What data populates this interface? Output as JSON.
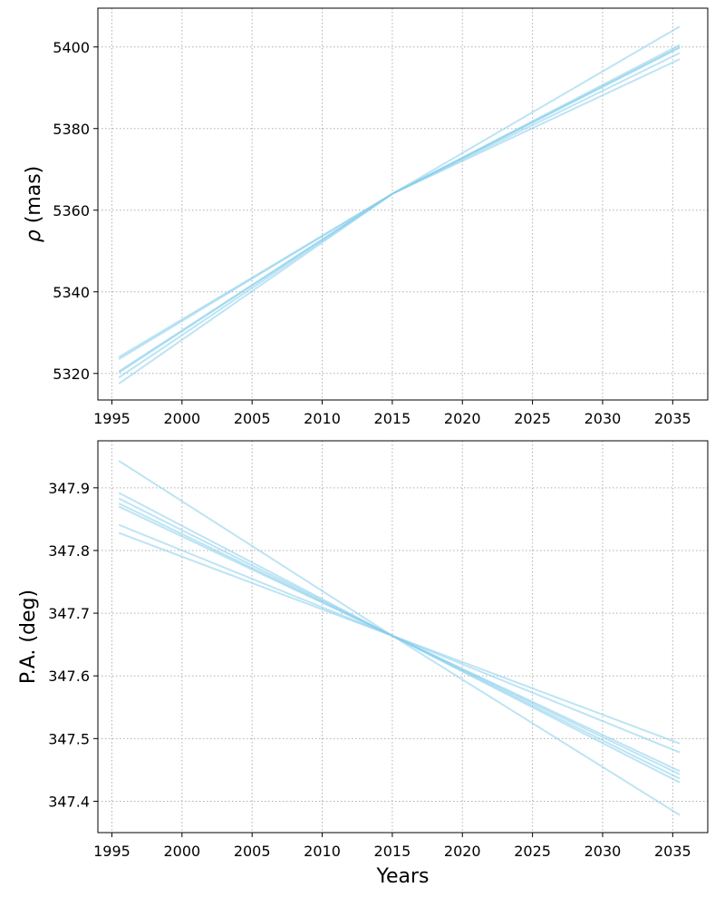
{
  "chart_data": [
    {
      "type": "line",
      "title": "",
      "xlabel": "",
      "ylabel": "ρ (mas)",
      "ylabel_parts": {
        "symbol": "ρ",
        "unit": " (mas)"
      },
      "xlim": [
        1994,
        2037.5
      ],
      "ylim": [
        5313.5,
        5409.5
      ],
      "xticks": [
        1995,
        2000,
        2005,
        2010,
        2015,
        2020,
        2025,
        2030,
        2035
      ],
      "yticks": [
        5320,
        5340,
        5360,
        5380,
        5400
      ],
      "grid": true,
      "line_color": "#87ceeb",
      "series": [
        {
          "x": [
            1995.5,
            2015,
            2035.5
          ],
          "y": [
            5324.0,
            5364.0,
            5405.0
          ]
        },
        {
          "x": [
            1995.5,
            2015,
            2035.5
          ],
          "y": [
            5323.5,
            5364.0,
            5400.0
          ]
        },
        {
          "x": [
            1995.5,
            2015,
            2035.5
          ],
          "y": [
            5320.5,
            5364.0,
            5400.5
          ]
        },
        {
          "x": [
            1995.5,
            2015,
            2035.5
          ],
          "y": [
            5320.2,
            5364.0,
            5399.8
          ]
        },
        {
          "x": [
            1995.5,
            2015,
            2035.5
          ],
          "y": [
            5319.0,
            5364.0,
            5398.5
          ]
        },
        {
          "x": [
            1995.5,
            2015,
            2035.5
          ],
          "y": [
            5317.5,
            5364.0,
            5397.0
          ]
        }
      ]
    },
    {
      "type": "line",
      "title": "",
      "xlabel": "Years",
      "ylabel": "P.A. (deg)",
      "xlim": [
        1994,
        2037.5
      ],
      "ylim": [
        347.35,
        347.975
      ],
      "xticks": [
        1995,
        2000,
        2005,
        2010,
        2015,
        2020,
        2025,
        2030,
        2035
      ],
      "yticks": [
        347.4,
        347.5,
        347.6,
        347.7,
        347.8,
        347.9
      ],
      "grid": true,
      "line_color": "#87ceeb",
      "series": [
        {
          "x": [
            1995.5,
            2015,
            2035.5
          ],
          "y": [
            347.943,
            347.664,
            347.378
          ]
        },
        {
          "x": [
            1995.5,
            2015,
            2035.5
          ],
          "y": [
            347.892,
            347.664,
            347.43
          ]
        },
        {
          "x": [
            1995.5,
            2015,
            2035.5
          ],
          "y": [
            347.883,
            347.664,
            347.436
          ]
        },
        {
          "x": [
            1995.5,
            2015,
            2035.5
          ],
          "y": [
            347.875,
            347.664,
            347.443
          ]
        },
        {
          "x": [
            1995.5,
            2015,
            2035.5
          ],
          "y": [
            347.87,
            347.664,
            347.448
          ]
        },
        {
          "x": [
            1995.5,
            2015,
            2035.5
          ],
          "y": [
            347.841,
            347.664,
            347.478
          ]
        },
        {
          "x": [
            1995.5,
            2015,
            2035.5
          ],
          "y": [
            347.828,
            347.664,
            347.492
          ]
        }
      ]
    }
  ]
}
